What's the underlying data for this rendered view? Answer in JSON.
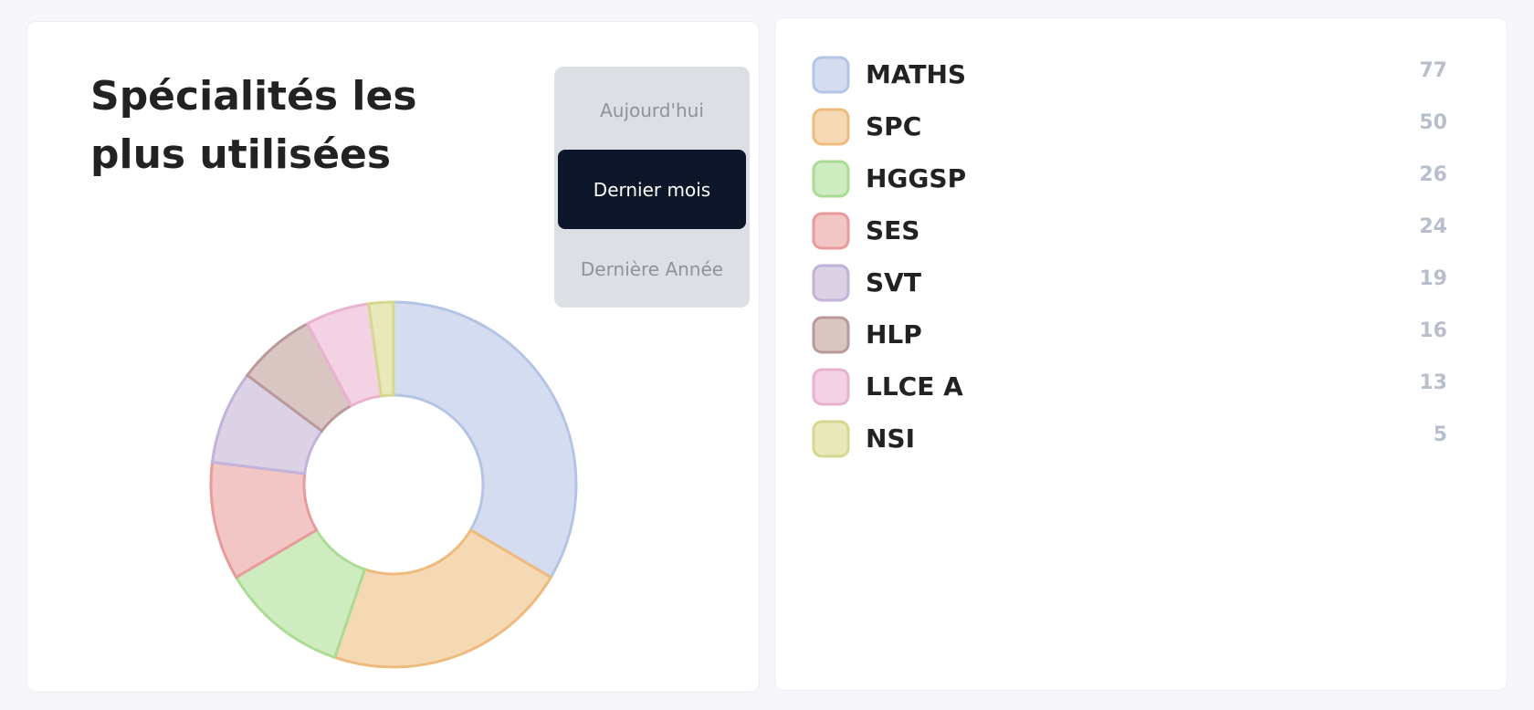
{
  "chart_data": {
    "type": "donut",
    "title": "Spécialités les plus utilisées",
    "categories": [
      "MATHS",
      "SPC",
      "HGGSP",
      "SES",
      "SVT",
      "HLP",
      "LLCE A",
      "NSI"
    ],
    "values": [
      77,
      50,
      26,
      24,
      19,
      16,
      13,
      5
    ],
    "colors": [
      "#d4dcef",
      "#f5d9b4",
      "#cfebc0",
      "#f3c6c6",
      "#dcd2e6",
      "#d9c6c3",
      "#f3d3e3",
      "#e8e9bb"
    ],
    "border_colors": [
      "#b3c4e6",
      "#efbb7c",
      "#abdc93",
      "#e99a9a",
      "#c2b3da",
      "#b9999a",
      "#e9b3cf",
      "#d6d890"
    ]
  },
  "filter": {
    "options": [
      "Aujourd'hui",
      "Dernier mois",
      "Dernière Année"
    ],
    "selected": 1
  }
}
